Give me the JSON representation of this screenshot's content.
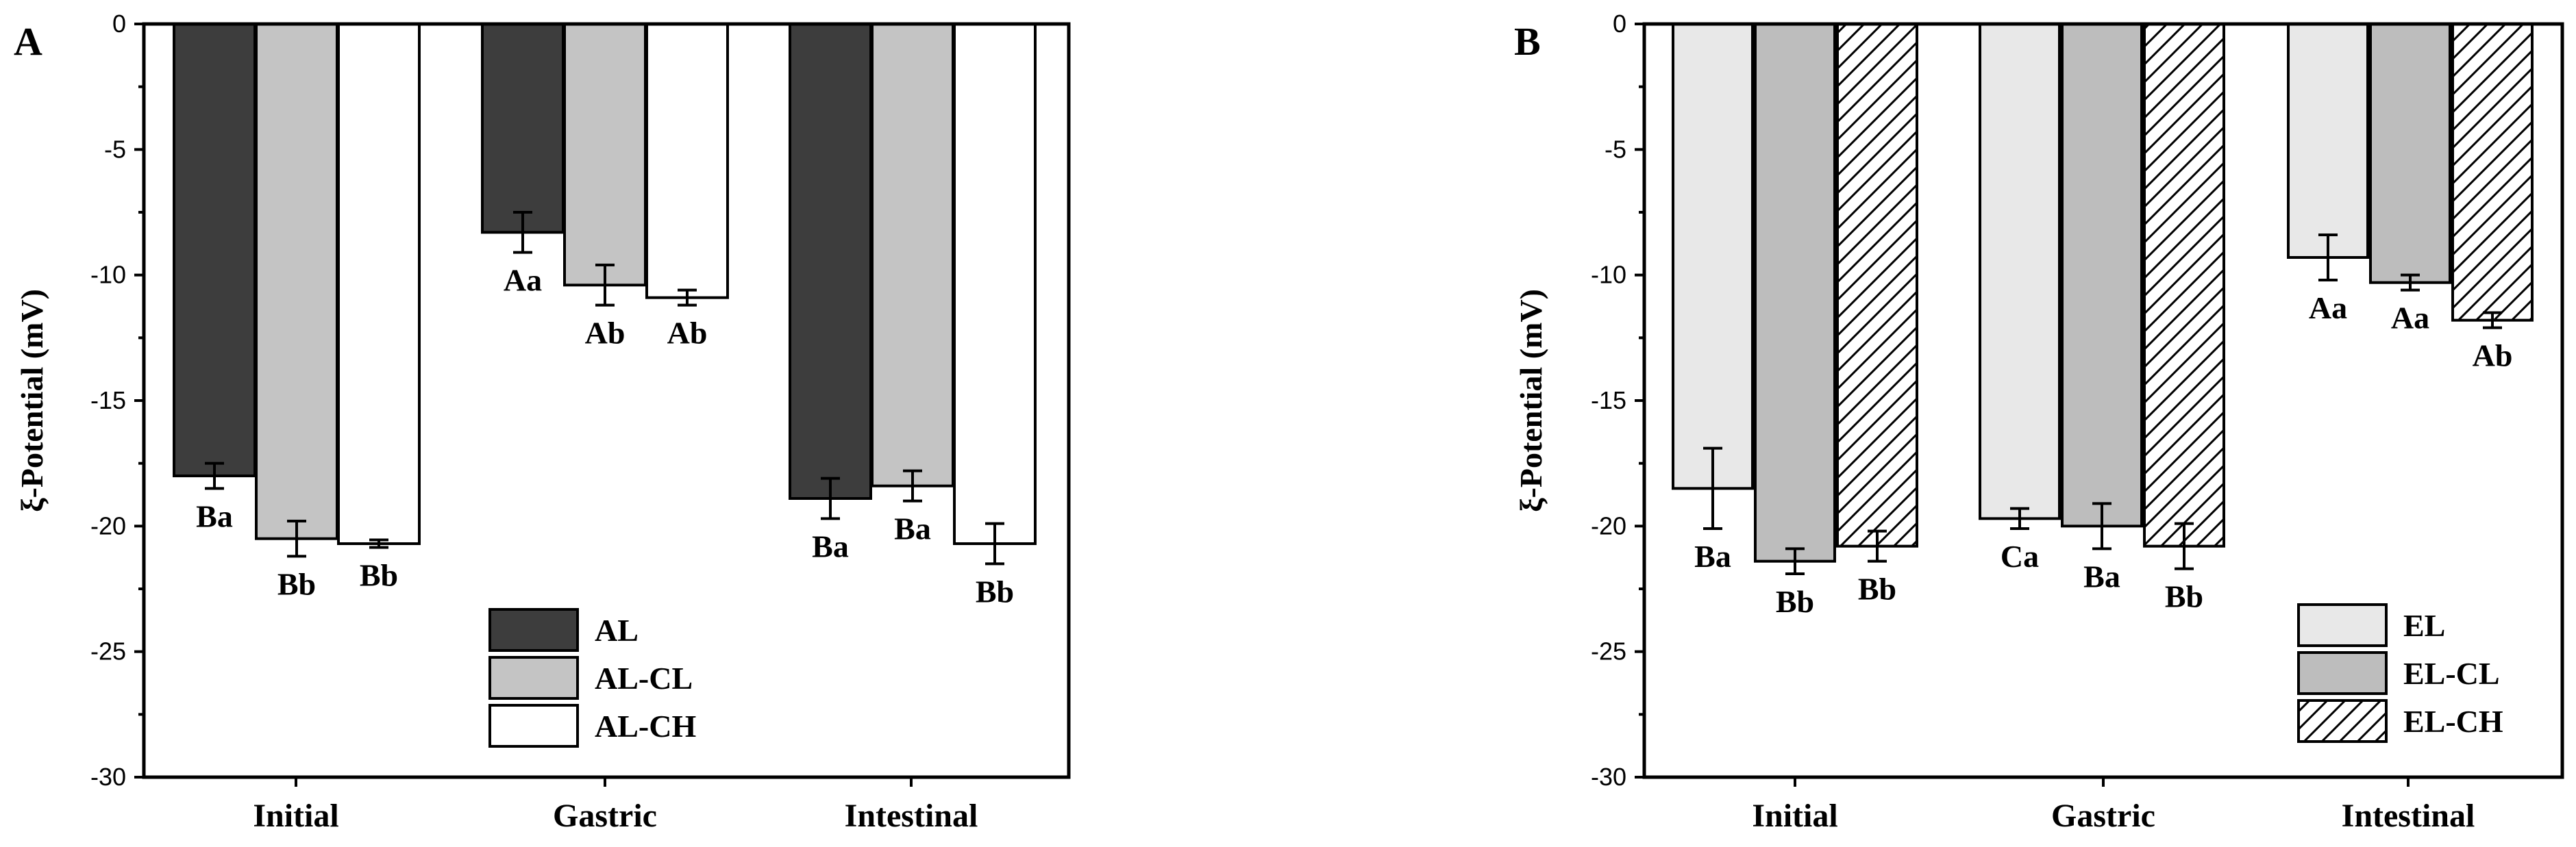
{
  "colors": {
    "AL": "#3d3d3d",
    "AL-CL": "#c4c4c4",
    "AL-CH": "#ffffff",
    "EL": "#e8e8e8",
    "EL-CL": "#bdbdbd",
    "EL-CH": "#ffffff"
  },
  "chart_data": [
    {
      "panel": "A",
      "type": "bar",
      "ylabel": "ξ-Potential (mV)",
      "xlabel": "",
      "ylim": [
        -30,
        0
      ],
      "yticks": [
        "0",
        "-5",
        "-10",
        "-15",
        "-20",
        "-25",
        "-30"
      ],
      "categories": [
        "Initial",
        "Gastric",
        "Intestinal"
      ],
      "legend_position": "bottom-right",
      "series": [
        {
          "name": "AL",
          "pattern": "solid",
          "values": [
            -18.0,
            -8.3,
            -18.9
          ],
          "errors": [
            0.5,
            0.8,
            0.8
          ],
          "labels": [
            "Ba",
            "Aa",
            "Ba"
          ]
        },
        {
          "name": "AL-CL",
          "pattern": "solid",
          "values": [
            -20.5,
            -10.4,
            -18.4
          ],
          "errors": [
            0.7,
            0.8,
            0.6
          ],
          "labels": [
            "Bb",
            "Ab",
            "Ba"
          ]
        },
        {
          "name": "AL-CH",
          "pattern": "solid",
          "values": [
            -20.7,
            -10.9,
            -20.7
          ],
          "errors": [
            0.15,
            0.3,
            0.8
          ],
          "labels": [
            "Bb",
            "Ab",
            "Bb"
          ]
        }
      ]
    },
    {
      "panel": "B",
      "type": "bar",
      "ylabel": "ξ-Potential (mV)",
      "xlabel": "",
      "ylim": [
        -30,
        0
      ],
      "yticks": [
        "0",
        "-5",
        "-10",
        "-15",
        "-20",
        "-25",
        "-30"
      ],
      "categories": [
        "Initial",
        "Gastric",
        "Intestinal"
      ],
      "legend_position": "bottom-right",
      "series": [
        {
          "name": "EL",
          "pattern": "solid",
          "values": [
            -18.5,
            -19.7,
            -9.3
          ],
          "errors": [
            1.6,
            0.4,
            0.9
          ],
          "labels": [
            "Ba",
            "Ca",
            "Aa"
          ]
        },
        {
          "name": "EL-CL",
          "pattern": "solid",
          "values": [
            -21.4,
            -20.0,
            -10.3
          ],
          "errors": [
            0.5,
            0.9,
            0.3
          ],
          "labels": [
            "Bb",
            "Ba",
            "Aa"
          ]
        },
        {
          "name": "EL-CH",
          "pattern": "hatch",
          "values": [
            -20.8,
            -20.8,
            -11.8
          ],
          "errors": [
            0.6,
            0.9,
            0.3
          ],
          "labels": [
            "Bb",
            "Bb",
            "Ab"
          ]
        }
      ]
    }
  ]
}
